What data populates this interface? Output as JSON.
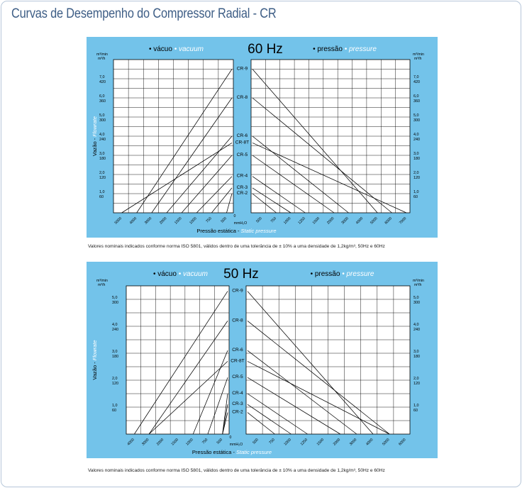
{
  "page": {
    "title": "Curvas de Desempenho do Compressor Radial - CR"
  },
  "colors": {
    "panel_bg": "#73c3ea",
    "title": "#3e5e86",
    "grid": "#000000",
    "plot_bg": "#ffffff",
    "italic_label": "#ffffff"
  },
  "chart_data": [
    {
      "type": "line",
      "frequency_label": "60 Hz",
      "legend_left": {
        "pt": "vácuo",
        "en": "vacuum"
      },
      "legend_right": {
        "pt": "pressão",
        "en": "pressure"
      },
      "flow_units": [
        "m³/min",
        "m³/h"
      ],
      "flow_axis_title": {
        "pt": "Vazão -",
        "en": "Flowrate"
      },
      "x_axis_title": {
        "pt": "Pressão estática -",
        "en": "Static pressure"
      },
      "x_unit": "mmH₂O",
      "zero_label": "0",
      "y_ticks": [
        {
          "value": 1.0,
          "m3min": "1,0",
          "m3h": "60"
        },
        {
          "value": 2.0,
          "m3min": "2,0",
          "m3h": "120"
        },
        {
          "value": 3.0,
          "m3min": "3,0",
          "m3h": "180"
        },
        {
          "value": 4.0,
          "m3min": "4,0",
          "m3h": "240"
        },
        {
          "value": 5.0,
          "m3min": "5,0",
          "m3h": "300"
        },
        {
          "value": 6.0,
          "m3min": "6,0",
          "m3h": "360"
        },
        {
          "value": 7.0,
          "m3min": "7,0",
          "m3h": "420"
        }
      ],
      "ylim": [
        0,
        8
      ],
      "vacuum_ticks": [
        "5000",
        "4000",
        "3000",
        "2000",
        "1500",
        "1000",
        "750",
        "500"
      ],
      "pressure_ticks": [
        "500",
        "750",
        "1000",
        "1250",
        "1500",
        "2000",
        "3000",
        "4000",
        "5000",
        "6000",
        "7000"
      ],
      "grid": true,
      "series": [
        {
          "name": "CR-9",
          "max_flow": 7.5,
          "max_vacuum": 4000,
          "max_pressure": 5000
        },
        {
          "name": "CR-8",
          "max_flow": 6.0,
          "max_vacuum": 3000,
          "max_pressure": 6000
        },
        {
          "name": "CR-6",
          "max_flow": 4.0,
          "max_vacuum": 2000,
          "max_pressure": 3000
        },
        {
          "name": "CR-8T",
          "max_flow": 3.65,
          "max_vacuum": 5000,
          "max_pressure": 7000
        },
        {
          "name": "CR-5",
          "max_flow": 3.0,
          "max_vacuum": 1500,
          "max_pressure": 2000
        },
        {
          "name": "CR-4",
          "max_flow": 1.9,
          "max_vacuum": 1000,
          "max_pressure": 1250
        },
        {
          "name": "CR-3",
          "max_flow": 1.3,
          "max_vacuum": 750,
          "max_pressure": 1000
        },
        {
          "name": "CR-2",
          "max_flow": 1.0,
          "max_vacuum": 500,
          "max_pressure": 750
        }
      ],
      "note": "Valores nominais indicados conforme norma ISO 5801, válidos dentro de uma tolerância de ± 10% a uma densidade de 1,2kg/m³, 50Hz e 60Hz"
    },
    {
      "type": "line",
      "frequency_label": "50 Hz",
      "legend_left": {
        "pt": "vácuo",
        "en": "vacuum"
      },
      "legend_right": {
        "pt": "pressão",
        "en": "pressure"
      },
      "flow_units": [
        "m³/min",
        "m³/h"
      ],
      "flow_axis_title": {
        "pt": "Vazão -",
        "en": "Flowrate"
      },
      "x_axis_title": {
        "pt": "Pressão estática -",
        "en": "Static pressure"
      },
      "x_unit": "mmH₂O",
      "zero_label": "0",
      "y_ticks": [
        {
          "value": 1.0,
          "m3min": "1,0",
          "m3h": "60"
        },
        {
          "value": 2.0,
          "m3min": "2,0",
          "m3h": "120"
        },
        {
          "value": 3.0,
          "m3min": "3,0",
          "m3h": "180"
        },
        {
          "value": 4.0,
          "m3min": "4,0",
          "m3h": "240"
        },
        {
          "value": 5.0,
          "m3min": "5,0",
          "m3h": "300"
        }
      ],
      "ylim": [
        0,
        5.5
      ],
      "vacuum_ticks": [
        "4000",
        "3000",
        "2000",
        "1500",
        "1000",
        "750",
        "500"
      ],
      "pressure_ticks": [
        "500",
        "750",
        "1000",
        "1250",
        "1500",
        "2000",
        "3000",
        "4000",
        "5000",
        "6000"
      ],
      "grid": true,
      "series": [
        {
          "name": "CR-9",
          "max_flow": 5.3,
          "max_vacuum": 4000,
          "max_pressure": 4000
        },
        {
          "name": "CR-8",
          "max_flow": 4.2,
          "max_vacuum": 3000,
          "max_pressure": 5000
        },
        {
          "name": "CR-6",
          "max_flow": 3.1,
          "max_vacuum": 1000,
          "max_pressure": 3000
        },
        {
          "name": "CR-8T",
          "max_flow": 2.7,
          "max_vacuum": 3000,
          "max_pressure": 5000
        },
        {
          "name": "CR-5",
          "max_flow": 2.1,
          "max_vacuum": 750,
          "max_pressure": 2000
        },
        {
          "name": "CR-4",
          "max_flow": 1.5,
          "max_vacuum": 500,
          "max_pressure": 1250
        },
        {
          "name": "CR-3",
          "max_flow": 1.1,
          "max_vacuum": 500,
          "max_pressure": 1000
        },
        {
          "name": "CR-2",
          "max_flow": 0.8,
          "max_vacuum": 500,
          "max_pressure": 750
        }
      ],
      "note": "Valores nominais indicados conforme norma ISO 5801, válidos dentro de uma tolerância de ± 10% a uma densidade de 1,2kg/m³, 50Hz e 60Hz"
    }
  ]
}
